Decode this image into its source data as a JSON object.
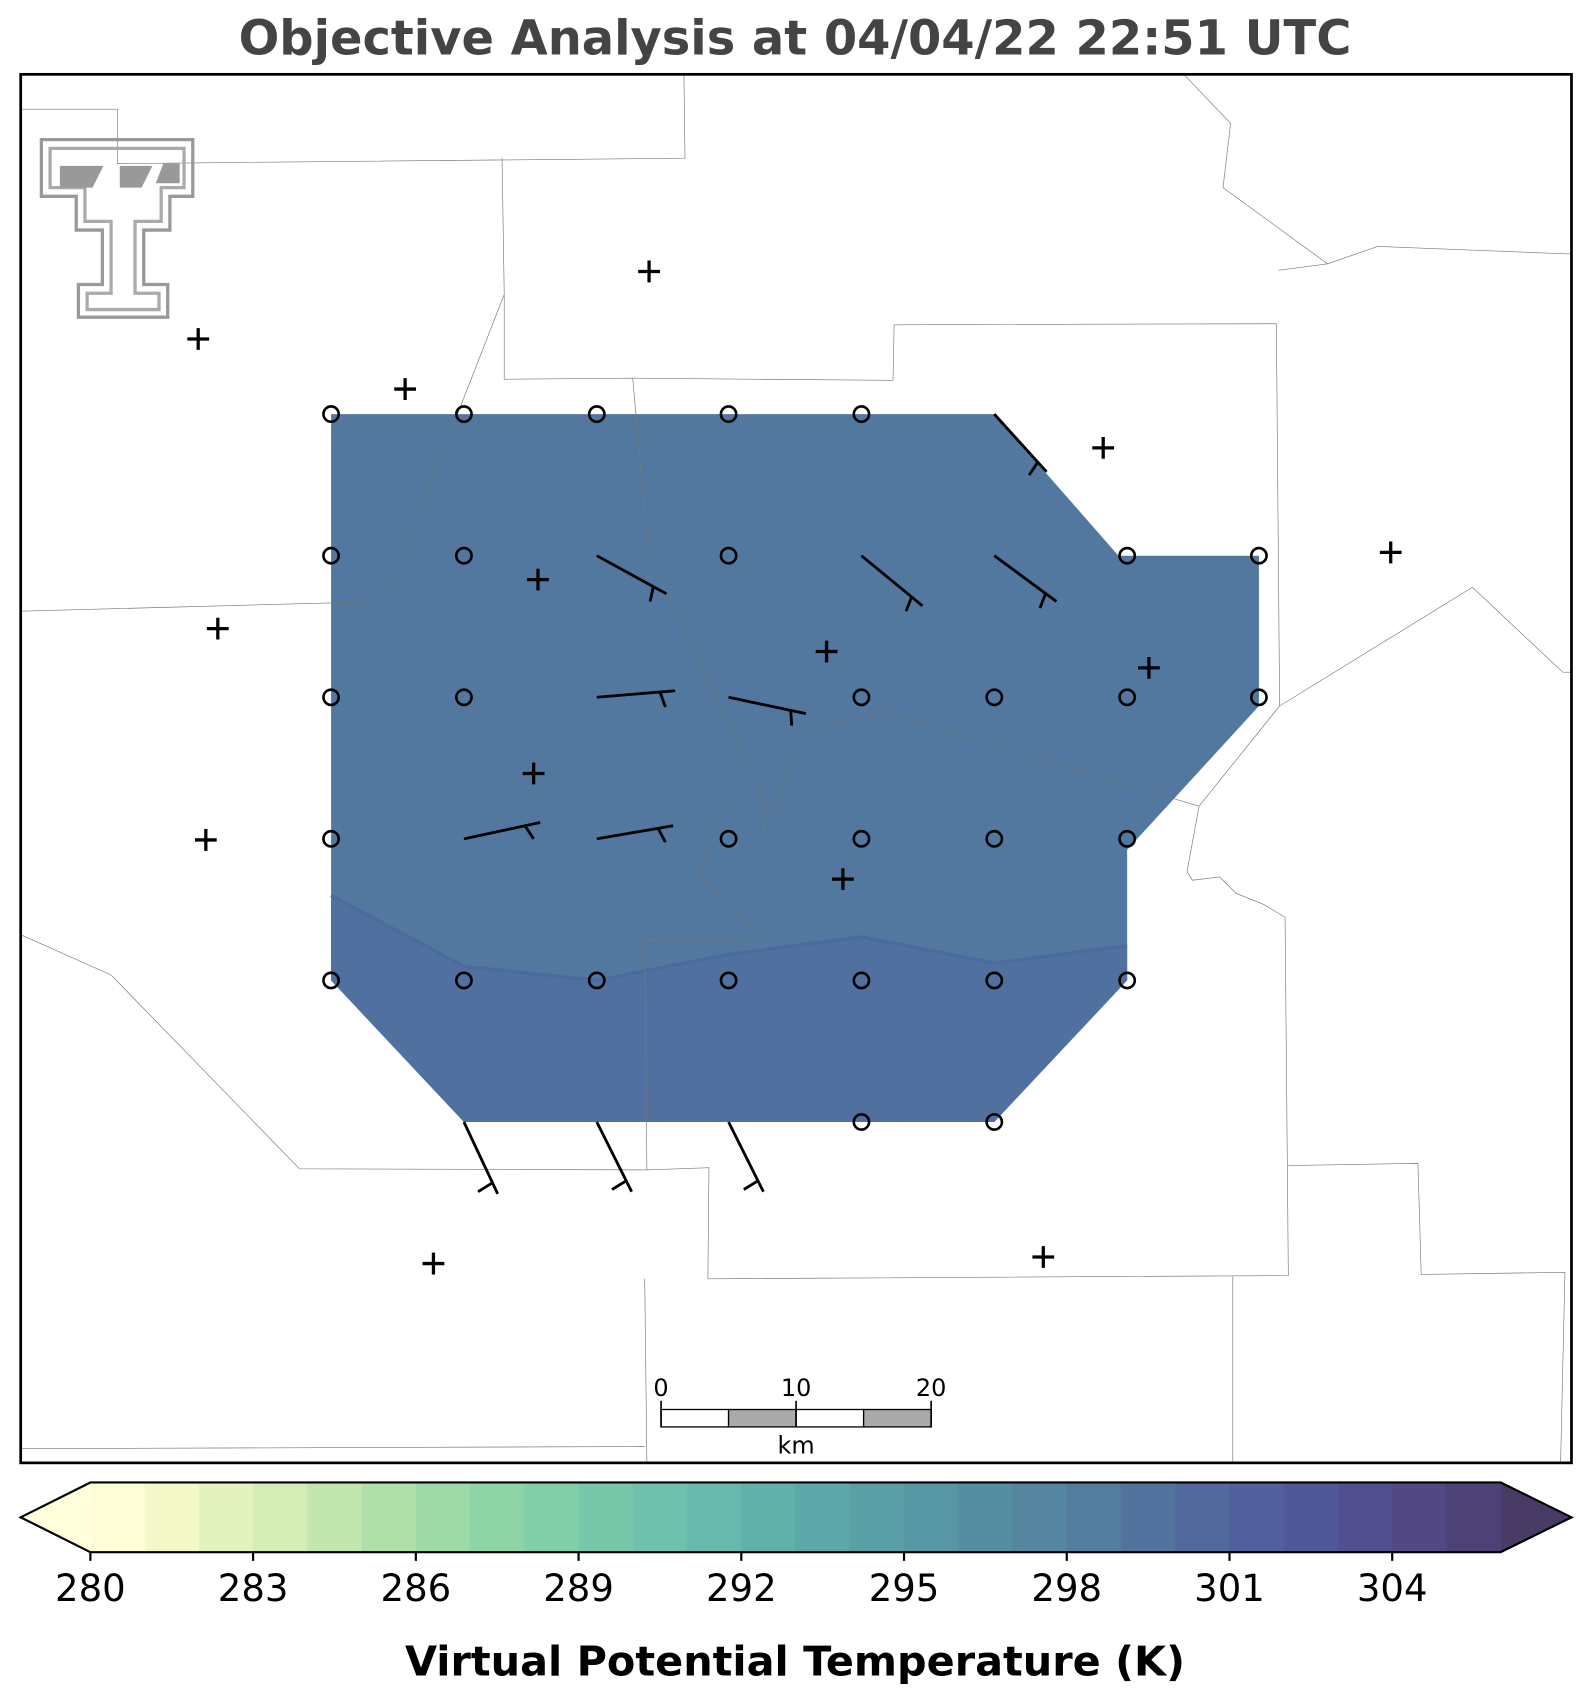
{
  "title": "Objective Analysis at 04/04/22 22:51 UTC",
  "colorbar": {
    "label": "Virtual Potential Temperature (K)",
    "range": [
      280,
      306
    ],
    "ticks": [
      280,
      283,
      286,
      289,
      292,
      295,
      298,
      301,
      304
    ],
    "colors": [
      "#fdfdd6",
      "#f3f8c9",
      "#e4f2bf",
      "#d4ecb5",
      "#c3e6ae",
      "#b0e0aa",
      "#9edaa7",
      "#8ed4a7",
      "#82cea9",
      "#77c8ab",
      "#6ec1ad",
      "#67b9ad",
      "#61b1ab",
      "#5ca8a8",
      "#599fa5",
      "#5797a3",
      "#568ea1",
      "#55859f",
      "#537c9d",
      "#52739d",
      "#51699d",
      "#51609c",
      "#515899",
      "#524f91",
      "#514884",
      "#4d4275"
    ],
    "under_color": "#ffffdc",
    "over_color": "#483b66"
  },
  "scale_bar": {
    "ticks": [
      0,
      10,
      20
    ],
    "unit": "km"
  }
}
